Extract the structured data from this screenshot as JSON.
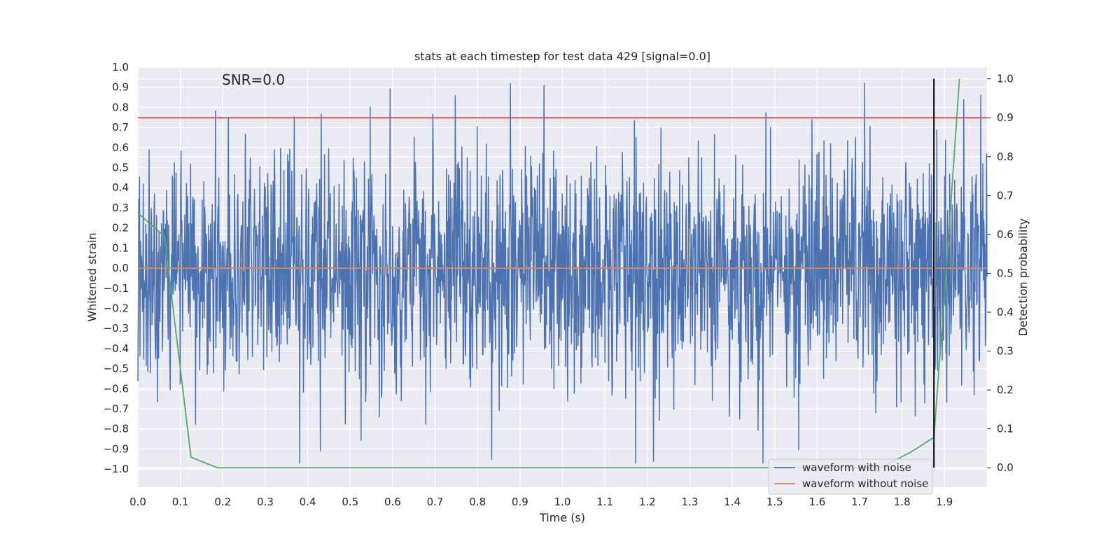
{
  "chart_data": {
    "type": "line",
    "title": "stats at each timestep for test data 429 [signal=0.0]",
    "annotation": "SNR=0.0",
    "xlabel": "Time (s)",
    "ylabel": "Whitened strain",
    "y2label": "Detection probability",
    "xlim": [
      0.0,
      2.0
    ],
    "ylim": [
      -1.09,
      1.0
    ],
    "y2lim": [
      -0.05,
      1.03
    ],
    "x_ticks": [
      0.0,
      0.1,
      0.2,
      0.3,
      0.4,
      0.5,
      0.6,
      0.7,
      0.8,
      0.9,
      1.0,
      1.1,
      1.2,
      1.3,
      1.4,
      1.5,
      1.6,
      1.7,
      1.8,
      1.9
    ],
    "x_tick_labels": [
      "0.0",
      "0.1",
      "0.2",
      "0.3",
      "0.4",
      "0.5",
      "0.6",
      "0.7",
      "0.8",
      "0.9",
      "1.0",
      "1.1",
      "1.2",
      "1.3",
      "1.4",
      "1.5",
      "1.6",
      "1.7",
      "1.8",
      "1.9"
    ],
    "y_ticks": [
      1.0,
      0.9,
      0.8,
      0.7,
      0.6,
      0.5,
      0.4,
      0.3,
      0.2,
      0.1,
      0.0,
      -0.1,
      -0.2,
      -0.3,
      -0.4,
      -0.5,
      -0.6,
      -0.7,
      -0.8,
      -0.9,
      -1.0
    ],
    "y_tick_labels": [
      "1.0",
      "0.9",
      "0.8",
      "0.7",
      "0.6",
      "0.5",
      "0.4",
      "0.3",
      "0.2",
      "0.1",
      "0.0",
      "−0.1",
      "−0.2",
      "−0.3",
      "−0.4",
      "−0.5",
      "−0.6",
      "−0.7",
      "−0.8",
      "−0.9",
      "−1.0"
    ],
    "y2_ticks": [
      1.0,
      0.9,
      0.8,
      0.7,
      0.6,
      0.5,
      0.4,
      0.3,
      0.2,
      0.1,
      0.0
    ],
    "y2_tick_labels": [
      "1.0",
      "0.9",
      "0.8",
      "0.7",
      "0.6",
      "0.5",
      "0.4",
      "0.3",
      "0.2",
      "0.1",
      "0.0"
    ],
    "series": [
      {
        "name": "waveform with noise",
        "color": "#4c72b0",
        "axis": "left",
        "kind": "noise",
        "n_points": 2048,
        "x_range": [
          0.0,
          2.0
        ],
        "std": 0.3,
        "min": -0.97,
        "max": 0.92,
        "seed": 429
      },
      {
        "name": "waveform without noise",
        "color": "#dd8452",
        "axis": "left",
        "x": [
          0.0,
          2.0
        ],
        "values": [
          0.0,
          0.0
        ]
      },
      {
        "name": "detection probability",
        "color": "#55a868",
        "axis": "right",
        "x": [
          0.0,
          0.0625,
          0.125,
          0.1875,
          0.25,
          0.5,
          1.0,
          1.5,
          1.75,
          1.82,
          1.875,
          1.91,
          1.935
        ],
        "values": [
          0.655,
          0.595,
          0.027,
          0.0,
          0.0,
          0.0,
          0.0,
          0.0,
          0.0,
          0.04,
          0.078,
          0.6,
          1.0
        ]
      }
    ],
    "threshold_line": {
      "axis": "right",
      "value": 0.9,
      "color": "#c44e52"
    },
    "trigger_line": {
      "axis": "right",
      "x": 1.875,
      "from": 0.0,
      "to": 1.0,
      "color": "#000000"
    },
    "legend": {
      "placement": "lower-right",
      "entries": [
        "waveform with noise",
        "waveform without noise"
      ]
    }
  }
}
